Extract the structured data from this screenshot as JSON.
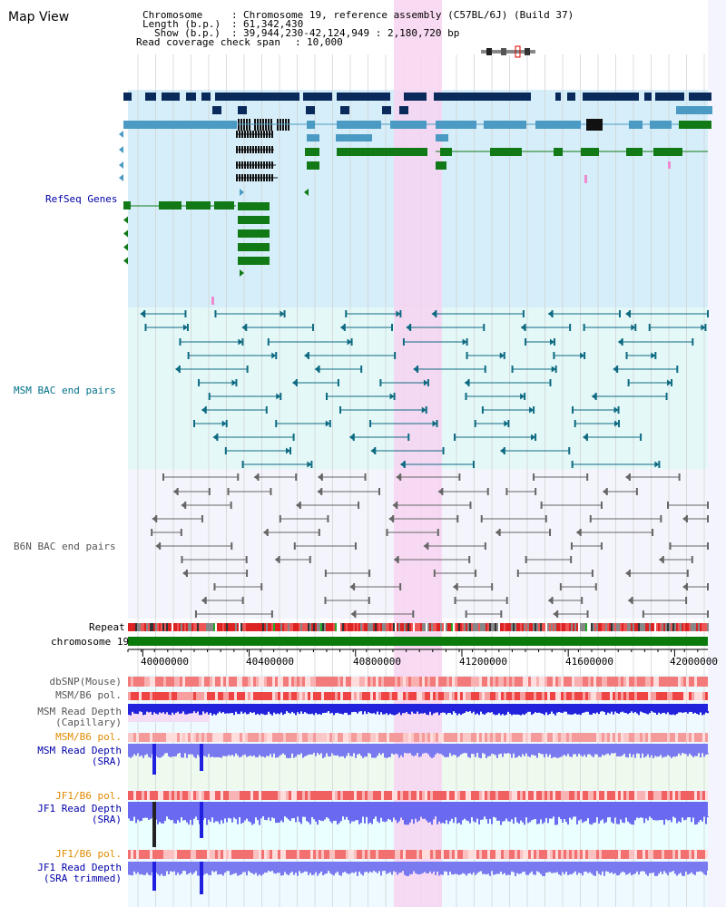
{
  "header": {
    "title": "Map View",
    "chromosome_label": "Chromosome",
    "chromosome_value": "Chromosome 19, reference assembly (C57BL/6J) (Build 37)",
    "length_label": "Length (b.p.)",
    "length_value": "61,342,430",
    "show_label": "Show (b.p.)",
    "show_value": "39,944,230-42,124,949 : 2,180,720 bp",
    "coverage_label": "Read coverage check span",
    "coverage_value": "10,000",
    "separator": ":"
  },
  "tracks": {
    "refseq": "RefSeq Genes",
    "msm_bac": "MSM BAC end pairs",
    "b6n_bac": "B6N BAC end pairs",
    "repeat": "Repeat",
    "chromosome": "chromosome 19"
  },
  "axis": {
    "start_bp": 39944230,
    "end_bp": 42124949,
    "ticks": [
      "40000000",
      "40400000",
      "40800000",
      "41200000",
      "41600000",
      "42000000"
    ],
    "tick_values": [
      40000000,
      40400000,
      40800000,
      41200000,
      41600000,
      42000000
    ]
  },
  "lower_tracks": {
    "dbsnp": "dbSNP(Mouse)",
    "msm_b6_pol_1": "MSM/B6 pol.",
    "msm_rd_cap_1": "MSM Read Depth",
    "msm_rd_cap_2": "(Capillary)",
    "msm_b6_pol_2": "MSM/B6 pol.",
    "msm_rd_sra_1": "MSM Read Depth",
    "msm_rd_sra_2": "(SRA)",
    "jf1_b6_pol_1": "JF1/B6 pol.",
    "jf1_rd_sra_1": "JF1 Read Depth",
    "jf1_rd_sra_2": "(SRA)",
    "jf1_b6_pol_2": "JF1/B6 pol.",
    "jf1_rd_trim_1": "JF1 Read Depth",
    "jf1_rd_trim_2": "(SRA trimmed)"
  },
  "colors": {
    "refseq_bg": "#d6eef9",
    "msm_bac_bg": "#e4f8f8",
    "b6n_bac_bg": "#f4f4fc",
    "highlight": "#f7d3f1",
    "gene_navy": "#0b2a5c",
    "gene_blue": "#4a9ac4",
    "gene_green": "#117a17",
    "bac_teal": "#0e6b82",
    "bac_gray": "#666666",
    "label_blue": "#0000aa",
    "label_teal": "#007088",
    "label_gray": "#555555",
    "label_orange": "#e08a00",
    "chrom_green": "#0a7a0a",
    "depth_blue": "#2020e0",
    "depth_light": "#7070f0",
    "pol_red": "#ee3333"
  }
}
